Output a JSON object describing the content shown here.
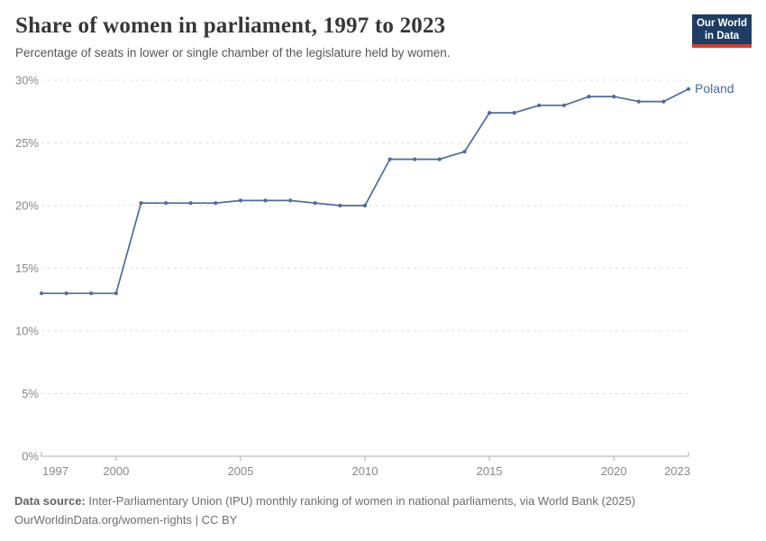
{
  "header": {
    "title": "Share of women in parliament, 1997 to 2023",
    "subtitle": "Percentage of seats in lower or single chamber of the legislature held by women.",
    "logo": {
      "line1": "Our World",
      "line2": "in Data",
      "bg": "#1d3d63",
      "accent": "#d83c2c"
    }
  },
  "chart_data": {
    "type": "line",
    "title": "Share of women in parliament, 1997 to 2023",
    "subtitle": "Percentage of seats in lower or single chamber of the legislature held by women.",
    "x": [
      1997,
      1998,
      1999,
      2000,
      2001,
      2002,
      2003,
      2004,
      2005,
      2006,
      2007,
      2008,
      2009,
      2010,
      2011,
      2012,
      2013,
      2014,
      2015,
      2016,
      2017,
      2018,
      2019,
      2020,
      2021,
      2022,
      2023
    ],
    "series": [
      {
        "name": "Poland",
        "color": "#4c6a9c",
        "values": [
          13.0,
          13.0,
          13.0,
          13.0,
          20.2,
          20.2,
          20.2,
          20.2,
          20.4,
          20.4,
          20.4,
          20.2,
          20.0,
          20.0,
          23.7,
          23.7,
          23.7,
          24.3,
          27.4,
          27.4,
          28.0,
          28.0,
          28.7,
          28.7,
          28.3,
          28.3,
          29.3
        ]
      }
    ],
    "xlabel": "",
    "ylabel": "",
    "xlim": [
      1997,
      2023
    ],
    "ylim": [
      0,
      30
    ],
    "x_ticks": [
      1997,
      2000,
      2005,
      2010,
      2015,
      2020,
      2023
    ],
    "y_ticks": [
      0,
      5,
      10,
      15,
      20,
      25,
      30
    ],
    "y_suffix": "%",
    "grid": "horizontal-dashed",
    "legend": "end-of-line-label"
  },
  "colors": {
    "line": "#4c6a9c",
    "grid": "#dcdcdc",
    "axis": "#adadad",
    "tick_label": "#878787",
    "title": "#373737",
    "subtitle": "#565656",
    "footer": "#6e6e6e"
  },
  "footer": {
    "source_label": "Data source:",
    "source_text": "Inter-Parliamentary Union (IPU) monthly ranking of women in national parliaments, via World Bank (2025)",
    "license_line": "OurWorldinData.org/women-rights | CC BY"
  }
}
